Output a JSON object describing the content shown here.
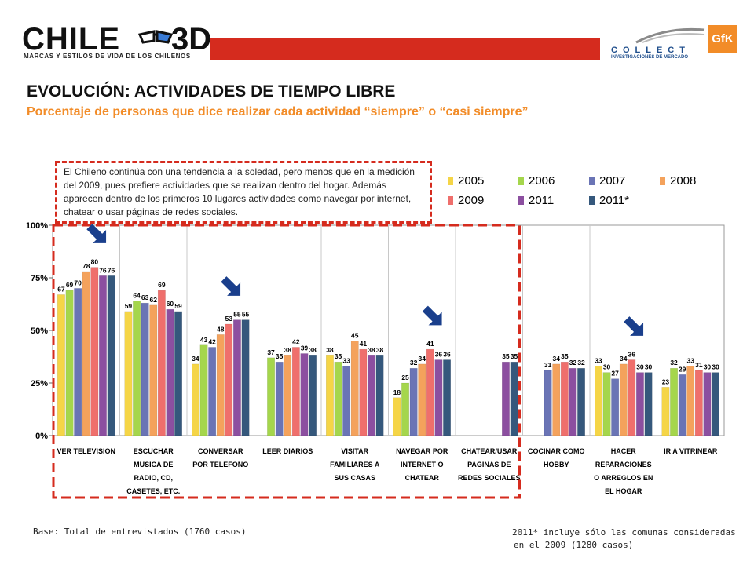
{
  "header": {
    "logo_text": "CHILE",
    "logo_3d": "3D",
    "logo_tagline": "MARCAS Y ESTILOS DE VIDA DE LOS CHILENOS",
    "partner_name": "COLLECT",
    "partner_sub": "INVESTIGACIONES DE MERCADO",
    "gfk": "GfK",
    "brand_red": "#d52b1e",
    "brand_orange": "#f28c28"
  },
  "title": "EVOLUCIÓN: ACTIVIDADES DE TIEMPO LIBRE",
  "subtitle": "Porcentaje de personas que dice realizar cada actividad “siempre” o “casi siempre”",
  "note": "El Chileno  continúa con una tendencia a la soledad, pero menos  que en la medición del 2009,  pues prefiere actividades que se realizan dentro del hogar. Además aparecen dentro de los primeros 10  lugares actividades como navegar por internet, chatear o usar páginas de redes sociales.",
  "footer": {
    "base": "Base: Total de entrevistados (1760 casos)",
    "note_line1": "2011* incluye sólo las comunas consideradas",
    "note_line2": "en el 2009 (1280 casos)"
  },
  "chart_data": {
    "type": "bar",
    "ylim": [
      0,
      100
    ],
    "yticks": [
      "0%",
      "25%",
      "50%",
      "75%",
      "100%"
    ],
    "categories": [
      [
        "VER TELEVISION"
      ],
      [
        "ESCUCHAR",
        "MUSICA DE",
        "RADIO, CD,",
        "CASETES, ETC."
      ],
      [
        "CONVERSAR",
        "POR TELEFONO"
      ],
      [
        "LEER DIARIOS"
      ],
      [
        "VISITAR",
        "FAMILIARES A",
        "SUS CASAS"
      ],
      [
        "NAVEGAR POR",
        "INTERNET O",
        "CHATEAR"
      ],
      [
        "CHATEAR/USAR",
        "PAGINAS DE",
        "REDES SOCIALES"
      ],
      [
        "COCINAR COMO",
        "HOBBY"
      ],
      [
        "HACER",
        "REPARACIONES",
        "O ARREGLOS EN",
        "EL HOGAR"
      ],
      [
        "IR A VITRINEAR"
      ]
    ],
    "series": [
      {
        "name": "2005",
        "color": "#f5d547",
        "values": [
          67,
          59,
          34,
          null,
          38,
          18,
          null,
          null,
          33,
          23
        ]
      },
      {
        "name": "2006",
        "color": "#a5d64c",
        "values": [
          69,
          64,
          43,
          37,
          35,
          25,
          null,
          null,
          30,
          32
        ]
      },
      {
        "name": "2007",
        "color": "#6a74b5",
        "values": [
          70,
          63,
          42,
          35,
          33,
          32,
          null,
          31,
          27,
          29
        ]
      },
      {
        "name": "2008",
        "color": "#f4a25c",
        "values": [
          78,
          62,
          48,
          38,
          45,
          34,
          null,
          34,
          34,
          33
        ]
      },
      {
        "name": "2009",
        "color": "#ef6f6c",
        "values": [
          80,
          69,
          53,
          42,
          41,
          41,
          null,
          35,
          36,
          31
        ]
      },
      {
        "name": "2011",
        "color": "#8c4fa0",
        "values": [
          76,
          60,
          55,
          39,
          38,
          36,
          35,
          32,
          30,
          30
        ]
      },
      {
        "name": "2011*",
        "color": "#35587c",
        "values": [
          76,
          59,
          55,
          38,
          38,
          36,
          35,
          32,
          30,
          30
        ]
      }
    ],
    "highlighted_categories": [
      0,
      1,
      2,
      3,
      4,
      5,
      6
    ],
    "arrow_categories": [
      0,
      2,
      5,
      8
    ]
  }
}
